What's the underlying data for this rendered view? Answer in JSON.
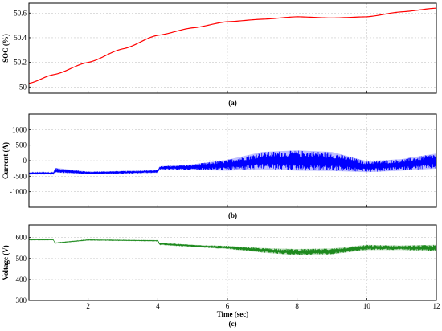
{
  "chart_data": [
    {
      "type": "line",
      "caption": "(a)",
      "ylabel": "SOC (%)",
      "xlabel": "",
      "xlim": [
        0.3,
        12
      ],
      "ylim": [
        49.95,
        50.68
      ],
      "xticks": [
        2,
        4,
        6,
        8,
        10,
        12
      ],
      "xtick_labels_shown": false,
      "yticks": [
        50,
        50.2,
        50.4,
        50.6
      ],
      "ytick_labels": [
        "50",
        "50.2",
        "50.4",
        "50.6"
      ],
      "grid": true,
      "series": [
        {
          "color": "#ff0000",
          "x": [
            0.3,
            1,
            2,
            3,
            4,
            5,
            6,
            7,
            8,
            9,
            10,
            11,
            12
          ],
          "y": [
            50.03,
            50.1,
            50.2,
            50.31,
            50.42,
            50.48,
            50.53,
            50.55,
            50.57,
            50.56,
            50.57,
            50.61,
            50.64
          ]
        }
      ]
    },
    {
      "type": "line",
      "caption": "(b)",
      "ylabel": "Current (A)",
      "xlabel": "",
      "xlim": [
        0.3,
        12
      ],
      "ylim": [
        -1500,
        1500
      ],
      "xticks": [
        2,
        4,
        6,
        8,
        10,
        12
      ],
      "xtick_labels_shown": false,
      "yticks": [
        -1000,
        -500,
        0,
        500,
        1000
      ],
      "ytick_labels": [
        "-1000",
        "-500",
        "0",
        "500",
        "1000"
      ],
      "grid": true,
      "series": [
        {
          "color": "#0000ff",
          "style": "noisy-band",
          "x": [
            0.3,
            1,
            1.05,
            2,
            3,
            4,
            4.05,
            5,
            6,
            7,
            8,
            9,
            10,
            11,
            12
          ],
          "y_upper": [
            -380,
            -380,
            -230,
            -350,
            -330,
            -300,
            -180,
            -120,
            30,
            280,
            330,
            280,
            -20,
            50,
            230
          ],
          "y_lower": [
            -430,
            -430,
            -380,
            -440,
            -420,
            -390,
            -290,
            -300,
            -320,
            -280,
            -320,
            -330,
            -370,
            -320,
            -260
          ]
        }
      ]
    },
    {
      "type": "line",
      "caption": "(c)",
      "ylabel": "Voltage (V)",
      "xlabel": "Time (sec)",
      "xlim": [
        0.3,
        12
      ],
      "ylim": [
        300,
        660
      ],
      "xticks": [
        2,
        4,
        6,
        8,
        10,
        12
      ],
      "xtick_labels": [
        "2",
        "4",
        "6",
        "8",
        "10",
        "12"
      ],
      "yticks": [
        300,
        400,
        500,
        600
      ],
      "ytick_labels": [
        "300",
        "400",
        "500",
        "600"
      ],
      "grid": true,
      "series": [
        {
          "color": "#1e8a1e",
          "style": "noisy-band",
          "x": [
            0.3,
            1,
            1.05,
            2,
            3,
            4,
            4.05,
            5,
            6,
            7,
            8,
            9,
            10,
            11,
            12
          ],
          "y_upper": [
            590,
            590,
            575,
            590,
            588,
            586,
            575,
            565,
            560,
            550,
            545,
            548,
            565,
            562,
            565
          ],
          "y_lower": [
            588,
            588,
            572,
            587,
            585,
            583,
            565,
            555,
            545,
            528,
            515,
            520,
            540,
            540,
            535
          ]
        }
      ]
    }
  ]
}
